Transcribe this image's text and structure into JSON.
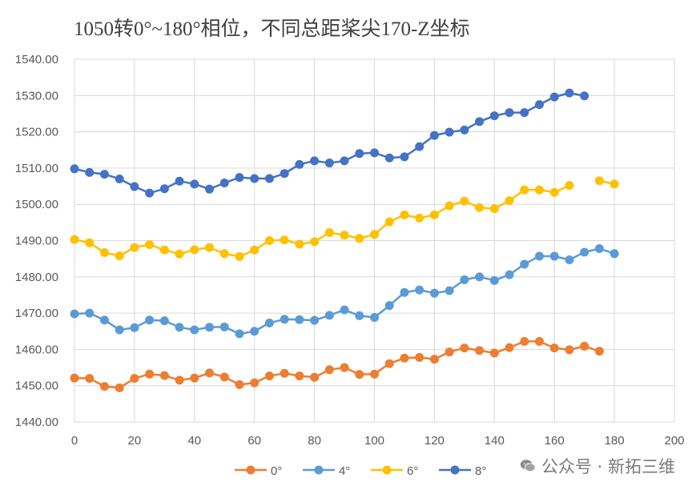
{
  "chart_data": {
    "type": "line",
    "title": "1050转0°~180°相位，不同总距桨尖170-Z坐标",
    "xlabel": "",
    "ylabel": "",
    "xlim": [
      0,
      200
    ],
    "ylim": [
      1440,
      1540
    ],
    "x_ticks": [
      "0",
      "20",
      "40",
      "60",
      "80",
      "100",
      "120",
      "140",
      "160",
      "180",
      "200"
    ],
    "y_ticks": [
      "1440.00",
      "1450.00",
      "1460.00",
      "1470.00",
      "1480.00",
      "1490.00",
      "1500.00",
      "1510.00",
      "1520.00",
      "1530.00",
      "1540.00"
    ],
    "grid": "vertical and horizontal",
    "legend_position": "bottom",
    "series": [
      {
        "name": "0°",
        "color": "#ED7D31",
        "x": [
          0,
          5,
          10,
          15,
          20,
          25,
          30,
          35,
          40,
          45,
          50,
          55,
          60,
          65,
          70,
          75,
          80,
          85,
          90,
          95,
          100,
          105,
          110,
          115,
          120,
          125,
          130,
          135,
          140,
          145,
          150,
          155,
          160,
          165,
          170,
          175
        ],
        "values": [
          1452.1,
          1452.0,
          1449.8,
          1449.4,
          1452.0,
          1453.2,
          1452.8,
          1451.5,
          1452.1,
          1453.5,
          1452.4,
          1450.3,
          1450.8,
          1452.7,
          1453.4,
          1452.7,
          1452.3,
          1454.4,
          1455.0,
          1453.1,
          1453.2,
          1456.1,
          1457.6,
          1457.8,
          1457.3,
          1459.3,
          1460.4,
          1459.7,
          1459.0,
          1460.5,
          1462.2,
          1462.2,
          1460.4,
          1459.9,
          1460.9,
          1459.5
        ]
      },
      {
        "name": "4°",
        "color": "#5B9BD5",
        "x": [
          0,
          5,
          10,
          15,
          20,
          25,
          30,
          35,
          40,
          45,
          50,
          55,
          60,
          65,
          70,
          75,
          80,
          85,
          90,
          95,
          100,
          105,
          110,
          115,
          120,
          125,
          130,
          135,
          140,
          145,
          150,
          155,
          160,
          165,
          170,
          175,
          180
        ],
        "values": [
          1469.8,
          1470.0,
          1468.1,
          1465.4,
          1466.0,
          1468.1,
          1467.9,
          1466.1,
          1465.4,
          1466.1,
          1466.2,
          1464.3,
          1465.0,
          1467.3,
          1468.3,
          1468.2,
          1468.0,
          1469.4,
          1470.9,
          1469.3,
          1468.8,
          1472.1,
          1475.7,
          1476.4,
          1475.5,
          1476.2,
          1479.2,
          1480.0,
          1479.0,
          1480.6,
          1483.5,
          1485.7,
          1485.7,
          1484.7,
          1486.8,
          1487.8,
          1486.4
        ]
      },
      {
        "name": "6°",
        "color": "#FFC000",
        "x": [
          0,
          5,
          10,
          15,
          20,
          25,
          30,
          35,
          40,
          45,
          50,
          55,
          60,
          65,
          70,
          75,
          80,
          85,
          90,
          95,
          100,
          105,
          110,
          115,
          120,
          125,
          130,
          135,
          140,
          145,
          150,
          155,
          160,
          165,
          175,
          180
        ],
        "values": [
          1490.3,
          1489.4,
          1486.7,
          1485.8,
          1488.1,
          1488.9,
          1487.4,
          1486.3,
          1487.5,
          1488.1,
          1486.4,
          1485.6,
          1487.4,
          1490.0,
          1490.2,
          1489.0,
          1489.7,
          1492.2,
          1491.5,
          1490.6,
          1491.7,
          1495.2,
          1497.1,
          1496.2,
          1497.1,
          1499.6,
          1500.9,
          1499.1,
          1498.8,
          1501.0,
          1504.0,
          1504.0,
          1503.3,
          1505.2,
          1506.5,
          1505.6
        ]
      },
      {
        "name": "8°",
        "color": "#4472C4",
        "x": [
          0,
          5,
          10,
          15,
          20,
          25,
          30,
          35,
          40,
          45,
          50,
          55,
          60,
          65,
          70,
          75,
          80,
          85,
          90,
          95,
          100,
          105,
          110,
          115,
          120,
          125,
          130,
          135,
          140,
          145,
          150,
          155,
          160,
          165,
          170
        ],
        "values": [
          1509.8,
          1508.8,
          1508.3,
          1507.0,
          1504.9,
          1503.1,
          1504.3,
          1506.4,
          1505.6,
          1504.2,
          1505.9,
          1507.4,
          1507.1,
          1507.1,
          1508.5,
          1511.0,
          1512.0,
          1511.4,
          1512.0,
          1514.0,
          1514.2,
          1512.8,
          1513.1,
          1515.9,
          1519.0,
          1519.9,
          1520.5,
          1522.8,
          1524.4,
          1525.3,
          1525.3,
          1527.5,
          1529.6,
          1530.7,
          1529.9
        ]
      }
    ]
  },
  "watermark": {
    "icon": "wechat-icon",
    "text": "公众号 · 新拓三维"
  }
}
